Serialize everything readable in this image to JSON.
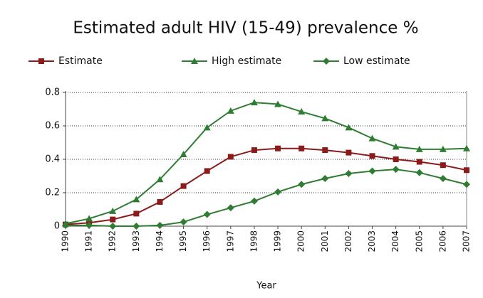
{
  "chart_data": {
    "type": "line",
    "title": "Estimated adult HIV (15-49) prevalence %",
    "x_label": "Year",
    "categories": [
      "1990",
      "1991",
      "1992",
      "1993",
      "1994",
      "1995",
      "1996",
      "1997",
      "1998",
      "1999",
      "2000",
      "2001",
      "2002",
      "2003",
      "2004",
      "2005",
      "2006",
      "2007"
    ],
    "series": [
      {
        "name": "Estimate",
        "color": "#8b1a1a",
        "marker": "square",
        "values": [
          0.01,
          0.02,
          0.04,
          0.075,
          0.145,
          0.24,
          0.33,
          0.415,
          0.455,
          0.465,
          0.465,
          0.455,
          0.44,
          0.42,
          0.4,
          0.385,
          0.365,
          0.335
        ]
      },
      {
        "name": "High estimate",
        "color": "#2e7d32",
        "marker": "triangle",
        "values": [
          0.015,
          0.045,
          0.09,
          0.16,
          0.28,
          0.43,
          0.59,
          0.69,
          0.74,
          0.73,
          0.685,
          0.645,
          0.59,
          0.525,
          0.475,
          0.46,
          0.46,
          0.465
        ]
      },
      {
        "name": "Low estimate",
        "color": "#2e7d32",
        "marker": "diamond",
        "values": [
          0.005,
          0.005,
          0,
          0,
          0.005,
          0.025,
          0.07,
          0.11,
          0.15,
          0.205,
          0.25,
          0.285,
          0.315,
          0.33,
          0.34,
          0.32,
          0.285,
          0.25
        ]
      }
    ],
    "ylim": [
      0,
      0.8
    ],
    "yticks": [
      0,
      0.2,
      0.4,
      0.6,
      0.8
    ],
    "grid": true,
    "legend": "top"
  }
}
